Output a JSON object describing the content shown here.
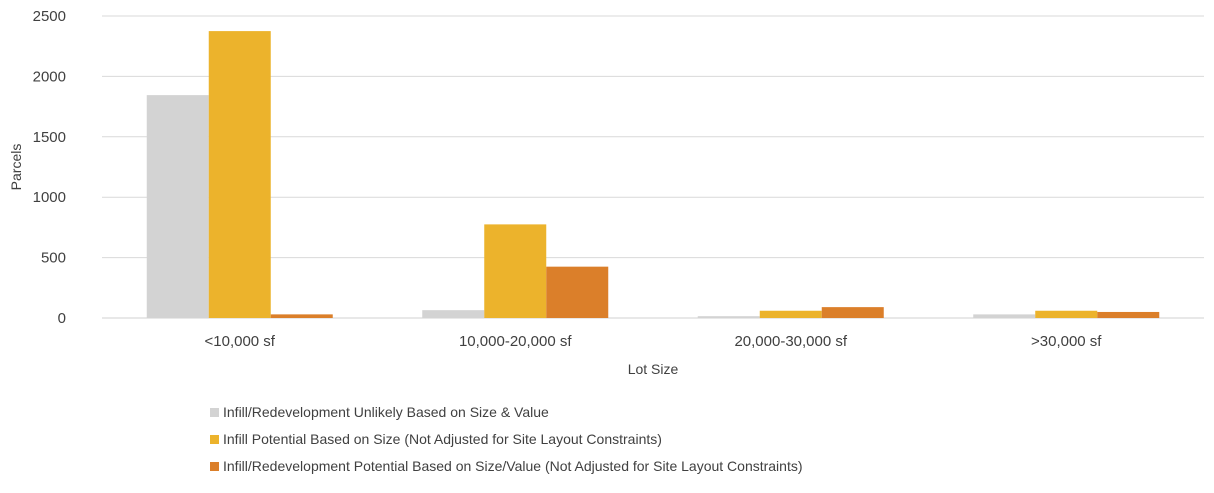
{
  "chart_data": {
    "type": "bar",
    "title": "",
    "xlabel": "Lot Size",
    "ylabel": "Parcels",
    "categories": [
      "<10,000 sf",
      "10,000-20,000 sf",
      "20,000-30,000 sf",
      ">30,000 sf"
    ],
    "ylim": [
      0,
      2500
    ],
    "yticks": [
      0,
      500,
      1000,
      1500,
      2000,
      2500
    ],
    "grid": true,
    "legend_position": "bottom",
    "series": [
      {
        "name": "Infill/Redevelopment Unlikely Based on Size & Value",
        "color": "#d3d3d3",
        "values": [
          1845,
          65,
          15,
          30
        ]
      },
      {
        "name": "Infill Potential Based on Size (Not Adjusted for Site Layout Constraints)",
        "color": "#ecb32c",
        "values": [
          2375,
          775,
          60,
          60
        ]
      },
      {
        "name": "Infill/Redevelopment Potential Based on Size/Value (Not Adjusted for Site Layout Constraints)",
        "color": "#db7f2a",
        "values": [
          30,
          425,
          90,
          50
        ]
      }
    ]
  }
}
